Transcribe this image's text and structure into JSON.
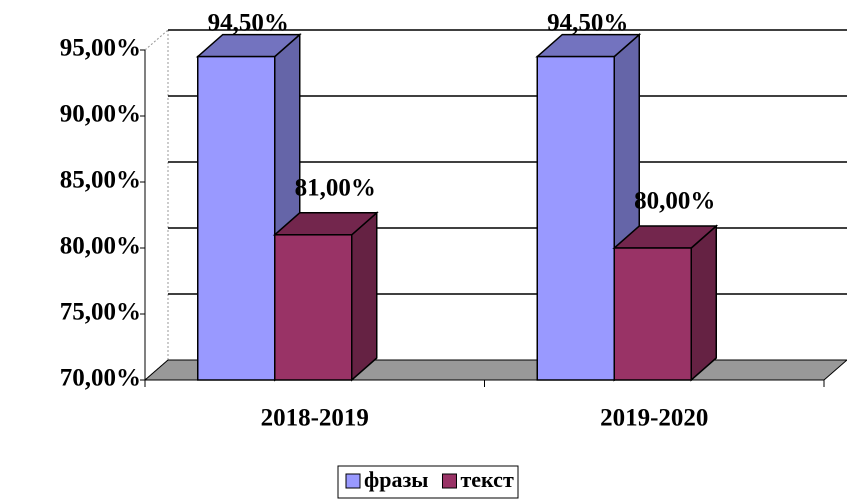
{
  "chart_data": {
    "type": "bar3d",
    "categories": [
      "2018-2019",
      "2019-2020"
    ],
    "series": [
      {
        "name": "фразы",
        "color": "#9999ff",
        "values": [
          94.5,
          94.5
        ],
        "value_labels": [
          "94,50%",
          "94,50%"
        ]
      },
      {
        "name": "текст",
        "color": "#993366",
        "values": [
          81,
          80
        ],
        "value_labels": [
          "81,00%",
          "80,00%"
        ]
      }
    ],
    "ylim": [
      70,
      95
    ],
    "yticks": [
      {
        "value": 70,
        "label": "70,00%"
      },
      {
        "value": 75,
        "label": "75,00%"
      },
      {
        "value": 80,
        "label": "80,00%"
      },
      {
        "value": 85,
        "label": "85,00%"
      },
      {
        "value": 90,
        "label": "90,00%"
      },
      {
        "value": 95,
        "label": "95,00%"
      }
    ],
    "grid": true,
    "legend": "bottom"
  }
}
